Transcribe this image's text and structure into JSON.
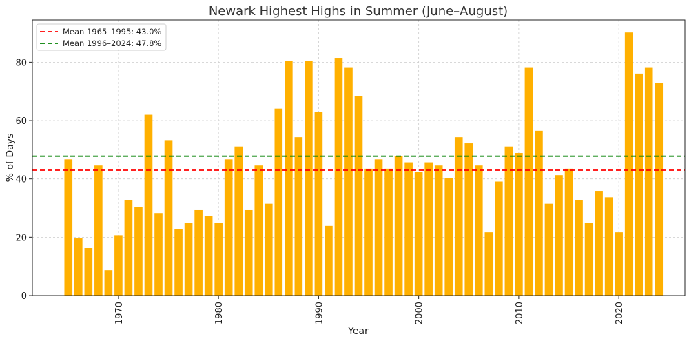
{
  "chart_data": {
    "type": "bar",
    "title": "Newark Highest Highs in Summer (June–August)",
    "xlabel": "Year",
    "ylabel": "% of Days",
    "xlim": [
      1961.4,
      2026.6
    ],
    "ylim": [
      0,
      94.5
    ],
    "x_ticks": [
      1970,
      1980,
      1990,
      2000,
      2010,
      2020
    ],
    "y_ticks": [
      0,
      20,
      40,
      60,
      80
    ],
    "grid": true,
    "legend_position": "top-left",
    "bar_color": "#FFB000",
    "x": [
      1965,
      1966,
      1967,
      1968,
      1969,
      1970,
      1971,
      1972,
      1973,
      1974,
      1975,
      1976,
      1977,
      1978,
      1979,
      1980,
      1981,
      1982,
      1983,
      1984,
      1985,
      1986,
      1987,
      1988,
      1989,
      1990,
      1991,
      1992,
      1993,
      1994,
      1995,
      1996,
      1997,
      1998,
      1999,
      2000,
      2001,
      2002,
      2003,
      2004,
      2005,
      2006,
      2007,
      2008,
      2009,
      2010,
      2011,
      2012,
      2013,
      2014,
      2015,
      2016,
      2017,
      2018,
      2019,
      2020,
      2021,
      2022,
      2023,
      2024
    ],
    "values": [
      46.7,
      19.6,
      16.3,
      44.6,
      8.7,
      20.7,
      32.6,
      30.4,
      62.0,
      28.3,
      53.3,
      22.8,
      25.0,
      29.3,
      27.2,
      25.0,
      46.7,
      51.1,
      29.3,
      44.6,
      31.5,
      64.1,
      80.4,
      54.3,
      80.4,
      63.0,
      23.9,
      81.5,
      78.3,
      68.5,
      43.5,
      46.7,
      43.5,
      47.8,
      45.7,
      42.4,
      45.7,
      44.6,
      40.2,
      54.3,
      52.2,
      44.6,
      21.7,
      39.1,
      51.1,
      48.9,
      78.3,
      56.5,
      31.5,
      41.3,
      43.5,
      32.6,
      25.0,
      35.9,
      33.7,
      21.7,
      90.2,
      76.1,
      78.3,
      72.8
    ],
    "reference_lines": [
      {
        "name": "Mean 1965–1995: 43.0%",
        "value": 43.0,
        "color": "#FF0000",
        "style": "dashed"
      },
      {
        "name": "Mean 1996–2024: 47.8%",
        "value": 47.8,
        "color": "#008000",
        "style": "dashed"
      }
    ]
  }
}
